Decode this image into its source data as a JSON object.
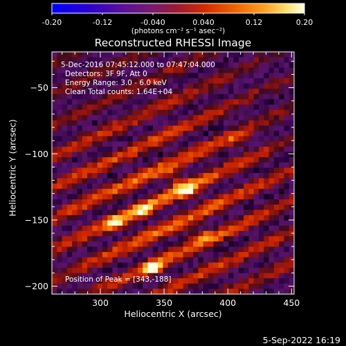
{
  "colorbar": {
    "ticks": [
      "-0.20",
      "-0.12",
      "-0.040",
      "0.040",
      "0.12",
      "0.20"
    ],
    "tick_values": [
      -0.2,
      -0.12,
      -0.04,
      0.04,
      0.12,
      0.2
    ],
    "range": [
      -0.2,
      0.2
    ],
    "units": "(photons cm⁻² s⁻¹ asec⁻²)"
  },
  "annotations": {
    "time": "5-Dec-2016 07:45:12.000 to 07:47:04.000",
    "detectors": "Detectors: 3F 9F, Att 0",
    "energy": "Energy Range: 3.0 - 6.0 keV",
    "clean": "Clean     Total counts: 1.64E+04",
    "peak": "Position of Peak = [343,-188]"
  },
  "timestamp": "5-Sep-2022 16:19",
  "chart_data": {
    "type": "heatmap",
    "title": "Reconstructed RHESSI Image",
    "xlabel": "Heliocentric X (arcsec)",
    "ylabel": "Heliocentric Y (arcsec)",
    "xlim": [
      262,
      452
    ],
    "ylim": [
      -206,
      -23
    ],
    "xticks": [
      300,
      350,
      400,
      450
    ],
    "yticks": [
      -50,
      -100,
      -150,
      -200
    ],
    "colormap": "RHESSI red-temperature",
    "peak_position": [
      343,
      -188
    ],
    "bright_regions": [
      {
        "x": 360,
        "y": -119,
        "value": 0.18
      },
      {
        "x": 370,
        "y": -130,
        "value": 0.17
      },
      {
        "x": 335,
        "y": -145,
        "value": 0.16
      },
      {
        "x": 315,
        "y": -154,
        "value": 0.15
      },
      {
        "x": 378,
        "y": -161,
        "value": 0.15
      },
      {
        "x": 343,
        "y": -188,
        "value": 0.19
      },
      {
        "x": 410,
        "y": -92,
        "value": 0.12
      }
    ],
    "colors": {
      "stops": [
        "#0000ff",
        "#3a00c8",
        "#6e1a8c",
        "#9a1e3c",
        "#c81e00",
        "#f05000",
        "#ff9a10",
        "#ffd24a",
        "#ffffe0"
      ]
    }
  }
}
